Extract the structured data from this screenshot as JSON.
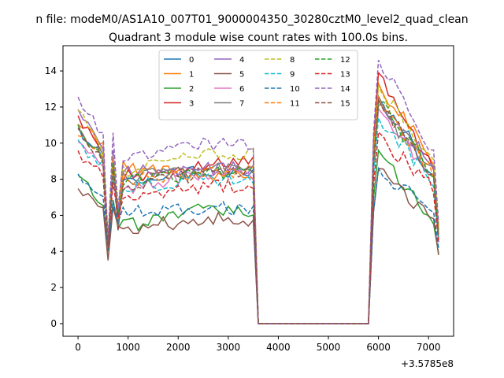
{
  "chart_data": {
    "type": "line",
    "suptitle": "n file: modeM0/AS1A10_007T01_9000004350_30280cztM0_level2_quad_clean",
    "title": "Quadrant 3 module wise count rates with 100.0s bins.",
    "xlabel": "",
    "ylabel": "",
    "x_offset_label": "+3.5785e8",
    "xlim": [
      -300,
      7500
    ],
    "ylim": [
      -0.7,
      15.4
    ],
    "xticks": [
      0,
      1000,
      2000,
      3000,
      4000,
      5000,
      6000,
      7000
    ],
    "yticks": [
      0,
      2,
      4,
      6,
      8,
      10,
      12,
      14
    ],
    "legend_position": "upper-center",
    "legend_columns": 4,
    "series": [
      {
        "name": "0",
        "color": "#1f77b4",
        "dash": "solid",
        "start": 10.8,
        "pre": 7.9,
        "mid": 8.5,
        "post": 12.6,
        "dip": 4.0,
        "end": 4.6
      },
      {
        "name": "1",
        "color": "#ff7f0e",
        "dash": "solid",
        "start": 11.3,
        "pre": 8.6,
        "mid": 8.3,
        "post": 13.3,
        "dip": 4.4,
        "end": 5.4
      },
      {
        "name": "2",
        "color": "#2ca02c",
        "dash": "solid",
        "start": 8.2,
        "pre": 5.4,
        "mid": 6.3,
        "post": 9.6,
        "dip": 4.0,
        "end": 3.9
      },
      {
        "name": "3",
        "color": "#d62728",
        "dash": "solid",
        "start": 11.6,
        "pre": 8.1,
        "mid": 8.9,
        "post": 13.9,
        "dip": 4.2,
        "end": 5.2
      },
      {
        "name": "4",
        "color": "#9467bd",
        "dash": "solid",
        "start": 11.9,
        "pre": 8.4,
        "mid": 8.6,
        "post": 12.4,
        "dip": 4.3,
        "end": 4.5
      },
      {
        "name": "5",
        "color": "#8c564b",
        "dash": "solid",
        "start": 7.4,
        "pre": 5.3,
        "mid": 5.8,
        "post": 8.6,
        "dip": 3.5,
        "end": 3.8
      },
      {
        "name": "6",
        "color": "#e377c2",
        "dash": "solid",
        "start": 10.3,
        "pre": 7.5,
        "mid": 8.3,
        "post": 11.9,
        "dip": 4.1,
        "end": 4.8
      },
      {
        "name": "7",
        "color": "#7f7f7f",
        "dash": "solid",
        "start": 10.9,
        "pre": 8.0,
        "mid": 8.6,
        "post": 12.1,
        "dip": 4.2,
        "end": 4.9
      },
      {
        "name": "8",
        "color": "#bcbd22",
        "dash": "dashed",
        "start": 11.8,
        "pre": 8.5,
        "mid": 9.3,
        "post": 13.1,
        "dip": 4.5,
        "end": 5.3
      },
      {
        "name": "9",
        "color": "#17becf",
        "dash": "dashed",
        "start": 9.9,
        "pre": 7.6,
        "mid": 8.0,
        "post": 11.4,
        "dip": 4.3,
        "end": 4.7
      },
      {
        "name": "10",
        "color": "#1f77b4",
        "dash": "dashed",
        "start": 8.1,
        "pre": 6.1,
        "mid": 6.4,
        "post": 8.6,
        "dip": 4.1,
        "end": 4.2
      },
      {
        "name": "11",
        "color": "#ff7f0e",
        "dash": "dashed",
        "start": 10.6,
        "pre": 7.9,
        "mid": 8.4,
        "post": 12.6,
        "dip": 4.2,
        "end": 5.0
      },
      {
        "name": "12",
        "color": "#2ca02c",
        "dash": "dashed",
        "start": 10.7,
        "pre": 7.8,
        "mid": 8.4,
        "post": 12.3,
        "dip": 4.4,
        "end": 4.9
      },
      {
        "name": "13",
        "color": "#d62728",
        "dash": "dashed",
        "start": 9.4,
        "pre": 7.0,
        "mid": 7.6,
        "post": 10.6,
        "dip": 4.3,
        "end": 4.6
      },
      {
        "name": "14",
        "color": "#9467bd",
        "dash": "dashed",
        "start": 12.6,
        "pre": 9.2,
        "mid": 10.0,
        "post": 14.6,
        "dip": 4.6,
        "end": 5.6
      },
      {
        "name": "15",
        "color": "#8c564b",
        "dash": "dashed",
        "start": 10.6,
        "pre": 7.7,
        "mid": 8.3,
        "post": 12.4,
        "dip": 4.2,
        "end": 4.8
      }
    ]
  }
}
